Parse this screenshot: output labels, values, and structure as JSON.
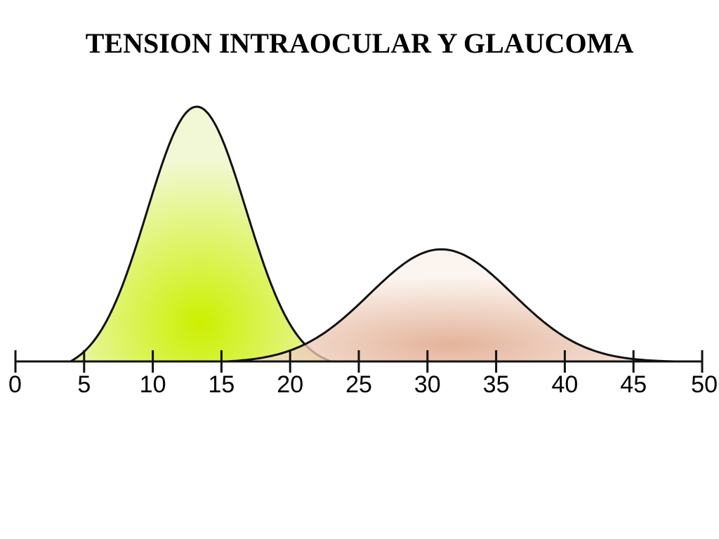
{
  "chart_data": {
    "type": "area",
    "title": "TENSION INTRAOCULAR Y GLAUCOMA",
    "xlabel": "",
    "ylabel": "",
    "xlim": [
      0,
      50
    ],
    "ylim": [
      0,
      1
    ],
    "grid": false,
    "ticks": [
      0,
      5,
      10,
      15,
      20,
      25,
      30,
      35,
      40,
      45,
      50
    ],
    "tick_labels": [
      "0",
      "5",
      "10",
      "15",
      "20",
      "25",
      "30",
      "35",
      "40",
      "45",
      "50"
    ],
    "series": [
      {
        "mean": 13.2,
        "start": 4.0,
        "end": 23.0,
        "peak": 1.0,
        "sigma": 3.6,
        "color": "#ccf000",
        "edge_color": "#f2f8d6"
      },
      {
        "mean": 31.0,
        "start": 15.4,
        "end": 48.0,
        "peak": 0.44,
        "sigma": 5.2,
        "color": "#dc9e7e",
        "edge_color": "#fbf1ea"
      }
    ]
  }
}
